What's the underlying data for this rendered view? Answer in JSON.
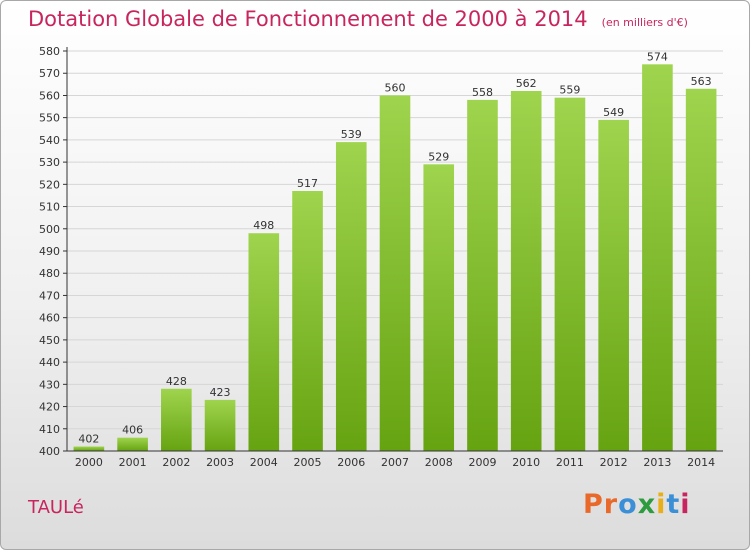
{
  "header": {
    "title": "Dotation Globale de Fonctionnement de 2000 à 2014",
    "unit": "(en milliers d'€)"
  },
  "footer": {
    "commune": "TAULé",
    "brand": [
      "P",
      "r",
      "o",
      "x",
      "i",
      "t",
      "i"
    ],
    "brand_colors": [
      "#e8692a",
      "#e8692a",
      "#3a8fd6",
      "#2e9b3f",
      "#e8b018",
      "#3a8fd6",
      "#c8255f"
    ]
  },
  "colors": {
    "title": "#c8255f",
    "bar_top": "#9fd44e",
    "bar_bottom": "#66a311",
    "grid": "#d6d6d6",
    "axis": "#333333"
  },
  "chart_data": {
    "type": "bar",
    "categories": [
      "2000",
      "2001",
      "2002",
      "2003",
      "2004",
      "2005",
      "2006",
      "2007",
      "2008",
      "2009",
      "2010",
      "2011",
      "2012",
      "2013",
      "2014"
    ],
    "values": [
      402,
      406,
      428,
      423,
      498,
      517,
      539,
      560,
      529,
      558,
      562,
      559,
      549,
      574,
      563
    ],
    "ylim": [
      400,
      580
    ],
    "ytick_step": 10,
    "grid": true,
    "legend": "none"
  }
}
